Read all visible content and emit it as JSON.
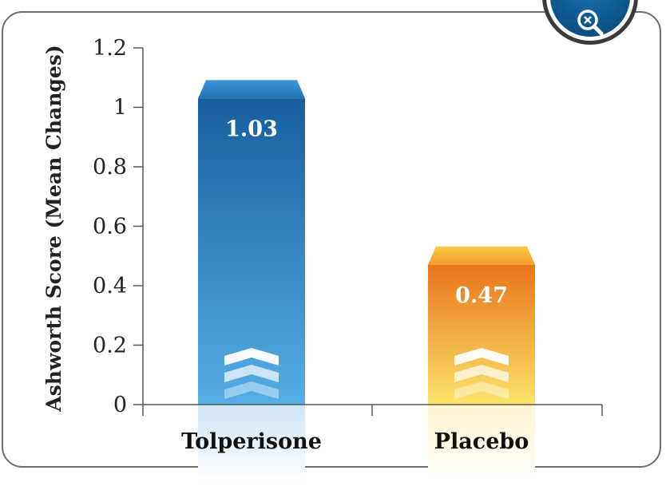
{
  "ui": {
    "zoom_icon": "zoom-out-magnifier-icon",
    "accent_color": "#0d5a92"
  },
  "chart_data": {
    "type": "bar",
    "title": "",
    "xlabel": "",
    "ylabel": "Ashworth Score (Mean Changes)",
    "categories": [
      "Tolperisone",
      "Placebo"
    ],
    "values": [
      1.03,
      0.47
    ],
    "value_labels": [
      "1.03",
      "0.47"
    ],
    "ylim": [
      0,
      1.2
    ],
    "yticks": [
      0,
      0.2,
      0.4,
      0.6,
      0.8,
      1,
      1.2
    ],
    "ytick_labels": [
      "0",
      "0.2",
      "0.4",
      "0.6",
      "0.8",
      "1",
      "1.2"
    ],
    "grid": false,
    "legend": "none",
    "colors": [
      "#2a86cc",
      "#f5a623"
    ]
  }
}
